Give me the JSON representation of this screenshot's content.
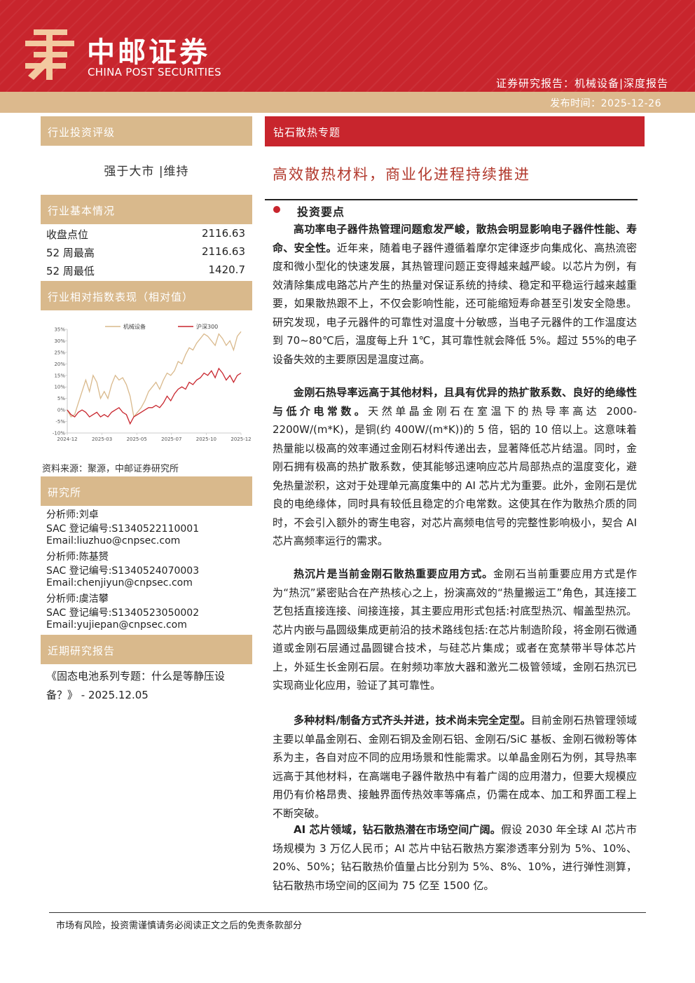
{
  "header": {
    "brand_cn": "中邮证券",
    "brand_en": "CHINA POST SECURITIES",
    "report_type": "证券研究报告：机械设备|深度报告",
    "pub_date": "发布时间：2025-12-26"
  },
  "left": {
    "rating_title": "行业投资评级",
    "rating_value": "强于大市 |维持",
    "basic_title": "行业基本情况",
    "basic_rows": [
      {
        "k": "收盘点位",
        "v": "2116.63"
      },
      {
        "k": "52 周最高",
        "v": "2116.63"
      },
      {
        "k": "52 周最低",
        "v": "1420.7"
      }
    ],
    "perf_title": "行业相对指数表现（相对值）",
    "chart_source": "资料来源：聚源，中邮证券研究所",
    "research_title": "研究所",
    "analysts": [
      "分析师:刘卓",
      "SAC 登记编号:S1340522110001",
      "Email:liuzhuo@cnpsec.com",
      "分析师:陈基赟",
      "SAC 登记编号:S1340524070003",
      "Email:chenjiyun@cnpsec.com",
      "分析师:虞洁攀",
      "SAC 登记编号:S1340523050002",
      "Email:yujiepan@cnpsec.com"
    ],
    "recent_title": "近期研究报告",
    "recent_report": "《固态电池系列专题：什么是等静压设备？》 - 2025.12.05"
  },
  "chart_data": {
    "type": "line",
    "x_ticks": [
      "2024-12",
      "2025-03",
      "2025-05",
      "2025-07",
      "2025-10",
      "2025-12"
    ],
    "y_ticks": [
      "35%",
      "30%",
      "25%",
      "20%",
      "15%",
      "10%",
      "5%",
      "0%",
      "-5%",
      "-10%"
    ],
    "ylim": [
      -10,
      35
    ],
    "legend_position": "top",
    "series": [
      {
        "name": "机械设备",
        "color": "#d9b98c",
        "values": [
          0,
          -3,
          -2,
          3,
          8,
          13,
          8,
          15,
          12,
          5,
          8,
          5,
          11,
          15,
          13,
          14,
          11,
          6,
          -3,
          -1,
          1,
          4,
          8,
          10,
          12,
          9,
          13,
          16,
          15,
          17,
          21,
          20,
          24,
          27,
          26,
          29,
          31,
          33,
          32,
          30,
          28,
          33,
          31,
          28,
          30,
          26,
          32,
          34
        ]
      },
      {
        "name": "沪深300",
        "color": "#c8252d",
        "values": [
          0,
          -2,
          -3,
          -1,
          0,
          -1,
          -3,
          -2,
          -1,
          -3,
          -2,
          -3,
          -1,
          0,
          1,
          -1,
          -2,
          -6,
          -3,
          -2,
          -1,
          0,
          1,
          1,
          2,
          1,
          3,
          6,
          4,
          7,
          9,
          10,
          9,
          12,
          11,
          13,
          14,
          16,
          15,
          17,
          14,
          18,
          16,
          13,
          15,
          12,
          15,
          16
        ]
      }
    ]
  },
  "right": {
    "topic": "钻石散热专题",
    "title": "高效散热材料，商业化进程持续推进",
    "points_head": "投资要点",
    "paragraphs": [
      {
        "bold": "高功率电子器件热管理问题愈发严峻，散热会明显影响电子器件性能、寿命、安全性。",
        "text": "近年来，随着电子器件遵循着摩尔定律逐步向集成化、高热流密度和微小型化的快速发展，其热管理问题正变得越来越严峻。以芯片为例，有效清除集成电路芯片产生的热量对保证系统的持续、稳定和平稳运行越来越重要，如果散热跟不上，不仅会影响性能，还可能缩短寿命甚至引发安全隐患。研究发现，电子元器件的可靠性对温度十分敏感，当电子元器件的工作温度达到 70~80℃后，温度每上升 1℃，其可靠性就会降低 5%。超过 55%的电子设备失效的主要原因是温度过高。"
      },
      {
        "bold": "金刚石热导率远高于其他材料，且具有优异的热扩散系数、良好的绝缘性与低介电常数。",
        "text": "天然单晶金刚石在室温下的热导率高达 2000-2200W/(m*K)，是铜(约 400W/(m*K))的 5 倍，铝的 10 倍以上。这意味着热量能以极高的效率通过金刚石材料传递出去，显著降低芯片结温。同时，金刚石拥有极高的热扩散系数，使其能够迅速响应芯片局部热点的温度变化，避免热量淤积，这对于处理单元高度集中的 AI 芯片尤为重要。此外，金刚石是优良的电绝缘体，同时具有较低且稳定的介电常数。这使其在作为散热介质的同时，不会引入额外的寄生电容，对芯片高频电信号的完整性影响极小，契合 AI 芯片高频率运行的需求。"
      },
      {
        "bold": "热沉片是当前金刚石散热重要应用方式。",
        "text": "金刚石当前重要应用方式是作为“热沉”紧密贴合在产热核心之上，扮演高效的“热量搬运工”角色，其连接工艺包括直接连接、间接连接，其主要应用形式包括:衬底型热沉、帽盖型热沉。芯片内嵌与晶圆级集成更前沿的技术路线包括:在芯片制造阶段，将金刚石微通道或金刚石层通过晶圆键合技术，与硅芯片集成；或者在宽禁带半导体芯片上，外延生长金刚石层。在射频功率放大器和激光二极管领域，金刚石热沉已实现商业化应用，验证了其可靠性。"
      },
      {
        "bold": "多种材料/制备方式齐头并进，技术尚未完全定型。",
        "text": "目前金刚石热管理领域主要以单晶金刚石、金刚石铜及金刚石铝、金刚石/SiC 基板、金刚石微粉等体系为主，各自对应不同的应用场景和性能需求。以单晶金刚石为例，其导热率远高于其他材料，在高端电子器件散热中有着广阔的应用潜力，但要大规模应用仍有价格昂贵、接触界面传热效率等痛点，仍需在成本、加工和界面工程上不断突破。"
      },
      {
        "bold": "AI 芯片领域，钻石散热潜在市场空间广阔。",
        "text": "假设 2030 年全球 AI 芯片市场规模为 3 万亿人民币；AI 芯片中钻石散热方案渗透率分别为 5%、10%、20%、50%；钻石散热价值量占比分别为 5%、8%、10%，进行弹性测算，钻石散热市场空间的区间为 75 亿至 1500 亿。"
      }
    ]
  },
  "footer": {
    "text": "市场有风险，投资需谨慎请务必阅读正文之后的免责条款部分"
  }
}
